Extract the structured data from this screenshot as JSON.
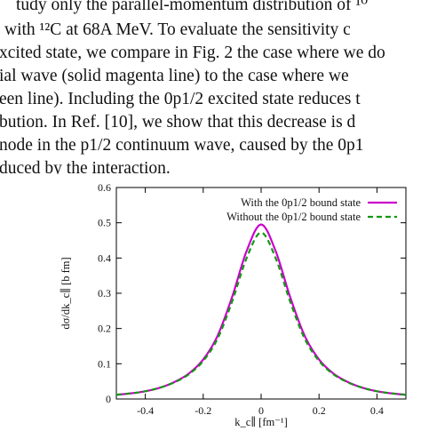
{
  "paper": {
    "lines": [
      "tudy only the parallel-momentum distribution of ¹⁰",
      "with ¹²C at 68A MeV. To evaluate the sensitivity c",
      "xcited state, we compare in Fig. 2 the case where we do",
      "ial wave (solid magenta line) to the case where we",
      "een line). Including the 0p1/2 excited state reduces t",
      "bution. In Ref. [10], we show that this decrease is d",
      "node in the p1/2 continuum wave, caused by the 0p1",
      "duced by the interaction."
    ]
  },
  "chart_data": {
    "type": "line",
    "xlabel": "k_c∥ [fm⁻¹]",
    "ylabel": "dσ/dk_c∥ [b fm]",
    "xlim": [
      -0.5,
      0.5
    ],
    "ylim": [
      0,
      0.6
    ],
    "x_ticks": [
      "-0.4",
      "-0.2",
      "0",
      "0.2",
      "0.4"
    ],
    "y_ticks": [
      "0",
      "0.1",
      "0.2",
      "0.3",
      "0.4",
      "0.5",
      "0.6"
    ],
    "legend_position": "top-right",
    "series": [
      {
        "name": "With the 0p1/2 bound state",
        "color": "#cc00cc",
        "style": "solid",
        "x": [
          -0.5,
          -0.45,
          -0.4,
          -0.35,
          -0.3,
          -0.25,
          -0.2,
          -0.15,
          -0.1,
          -0.05,
          0,
          0.05,
          0.1,
          0.15,
          0.2,
          0.25,
          0.3,
          0.35,
          0.4,
          0.45,
          0.5
        ],
        "y": [
          0.012,
          0.016,
          0.022,
          0.032,
          0.048,
          0.072,
          0.112,
          0.18,
          0.29,
          0.42,
          0.495,
          0.42,
          0.29,
          0.18,
          0.112,
          0.072,
          0.048,
          0.032,
          0.022,
          0.016,
          0.012
        ]
      },
      {
        "name": "Without the 0p1/2 bound state",
        "color": "#119911",
        "style": "dashed",
        "x": [
          -0.5,
          -0.45,
          -0.4,
          -0.35,
          -0.3,
          -0.25,
          -0.2,
          -0.15,
          -0.1,
          -0.05,
          0,
          0.05,
          0.1,
          0.15,
          0.2,
          0.25,
          0.3,
          0.35,
          0.4,
          0.45,
          0.5
        ],
        "y": [
          0.012,
          0.016,
          0.022,
          0.032,
          0.047,
          0.07,
          0.108,
          0.172,
          0.277,
          0.4,
          0.472,
          0.4,
          0.277,
          0.172,
          0.108,
          0.07,
          0.047,
          0.032,
          0.022,
          0.016,
          0.012
        ]
      }
    ]
  }
}
